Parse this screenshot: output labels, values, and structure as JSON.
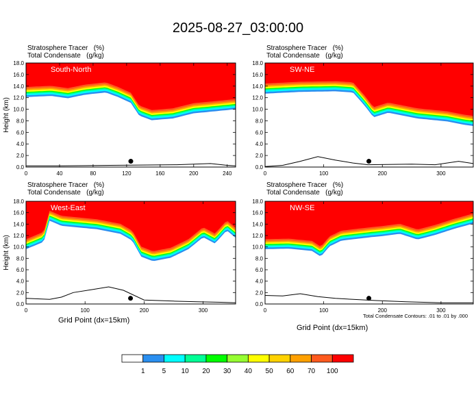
{
  "figure": {
    "title": "2025-08-27_03:00:00",
    "x_axis_label": "Grid Point (dx=15km)",
    "contour_note": "Total Condensate Contours: .01 to .01 by .000"
  },
  "colors": {
    "fill_levels": [
      "#ffffff",
      "#2a8ff0",
      "#00ffff",
      "#00ff96",
      "#00ff00",
      "#96ff32",
      "#ffff00",
      "#ffd200",
      "#ffa000",
      "#ff5a1e",
      "#ff0000"
    ],
    "terrain": "#000000",
    "contour": "#000000"
  },
  "chart_data": [
    {
      "type": "heatmap",
      "panel_label": "South-North",
      "title_lines": [
        "Stratosphere Tracer   (%)",
        "Total Condensate   (g/kg)"
      ],
      "ylabel": "Height (km)",
      "xlim": [
        0,
        250
      ],
      "ylim": [
        0,
        18
      ],
      "xticks": [
        0,
        40,
        80,
        120,
        160,
        200,
        240
      ],
      "yticks": [
        0.0,
        2.0,
        4.0,
        6.0,
        8.0,
        10.0,
        12.0,
        14.0,
        16.0,
        18.0
      ],
      "tropopause_km": [
        [
          0,
          13.0
        ],
        [
          30,
          13.2
        ],
        [
          50,
          12.8
        ],
        [
          70,
          13.4
        ],
        [
          95,
          13.8
        ],
        [
          110,
          13.0
        ],
        [
          125,
          12.0
        ],
        [
          135,
          9.8
        ],
        [
          150,
          9.0
        ],
        [
          175,
          9.3
        ],
        [
          200,
          10.2
        ],
        [
          215,
          10.4
        ],
        [
          250,
          10.9
        ]
      ],
      "terrain_km": [
        [
          0,
          0.2
        ],
        [
          40,
          0.2
        ],
        [
          100,
          0.3
        ],
        [
          180,
          0.4
        ],
        [
          220,
          0.6
        ],
        [
          240,
          0.3
        ],
        [
          250,
          0.2
        ]
      ],
      "center_marker_x": 125
    },
    {
      "type": "heatmap",
      "panel_label": "SW-NE",
      "title_lines": [
        "Stratosphere Tracer   (%)",
        "Total Condensate   (g/kg)"
      ],
      "ylabel": "",
      "xlim": [
        0,
        355
      ],
      "ylim": [
        0,
        18
      ],
      "xticks": [
        0,
        100,
        200,
        300
      ],
      "yticks": [
        0.0,
        2.0,
        4.0,
        6.0,
        8.0,
        10.0,
        12.0,
        14.0,
        16.0,
        18.0
      ],
      "tropopause_km": [
        [
          0,
          13.6
        ],
        [
          60,
          13.9
        ],
        [
          120,
          14.0
        ],
        [
          150,
          13.8
        ],
        [
          170,
          11.5
        ],
        [
          185,
          9.5
        ],
        [
          210,
          10.3
        ],
        [
          260,
          9.3
        ],
        [
          310,
          8.8
        ],
        [
          340,
          8.2
        ],
        [
          355,
          8.0
        ]
      ],
      "terrain_km": [
        [
          0,
          0.1
        ],
        [
          30,
          0.3
        ],
        [
          60,
          1.0
        ],
        [
          90,
          1.8
        ],
        [
          120,
          1.2
        ],
        [
          150,
          0.7
        ],
        [
          175,
          0.4
        ],
        [
          250,
          0.5
        ],
        [
          290,
          0.4
        ],
        [
          330,
          1.0
        ],
        [
          355,
          0.6
        ]
      ],
      "center_marker_x": 177
    },
    {
      "type": "heatmap",
      "panel_label": "West-East",
      "title_lines": [
        "Stratosphere Tracer   (%)",
        "Total Condensate   (g/kg)"
      ],
      "ylabel": "Height (km)",
      "xlim": [
        0,
        355
      ],
      "ylim": [
        0,
        18
      ],
      "xticks": [
        0,
        100,
        200,
        300
      ],
      "yticks": [
        0.0,
        2.0,
        4.0,
        6.0,
        8.0,
        10.0,
        12.0,
        14.0,
        16.0,
        18.0
      ],
      "tropopause_km": [
        [
          0,
          10.5
        ],
        [
          30,
          11.8
        ],
        [
          40,
          15.5
        ],
        [
          60,
          14.6
        ],
        [
          120,
          14.0
        ],
        [
          160,
          13.2
        ],
        [
          180,
          12.0
        ],
        [
          195,
          9.2
        ],
        [
          215,
          8.4
        ],
        [
          245,
          9.0
        ],
        [
          275,
          10.5
        ],
        [
          300,
          12.6
        ],
        [
          320,
          11.5
        ],
        [
          340,
          13.8
        ],
        [
          355,
          12.5
        ]
      ],
      "terrain_km": [
        [
          0,
          1.0
        ],
        [
          40,
          0.8
        ],
        [
          60,
          1.2
        ],
        [
          80,
          2.0
        ],
        [
          110,
          2.5
        ],
        [
          140,
          3.0
        ],
        [
          165,
          2.4
        ],
        [
          200,
          0.7
        ],
        [
          250,
          0.5
        ],
        [
          290,
          0.4
        ],
        [
          330,
          0.3
        ],
        [
          355,
          0.2
        ]
      ],
      "center_marker_x": 177
    },
    {
      "type": "heatmap",
      "panel_label": "NW-SE",
      "title_lines": [
        "Stratosphere Tracer   (%)",
        "Total Condensate   (g/kg)"
      ],
      "ylabel": "",
      "xlim": [
        0,
        355
      ],
      "ylim": [
        0,
        18
      ],
      "xticks": [
        0,
        100,
        200,
        300
      ],
      "yticks": [
        0.0,
        2.0,
        4.0,
        6.0,
        8.0,
        10.0,
        12.0,
        14.0,
        16.0,
        18.0
      ],
      "tropopause_km": [
        [
          0,
          10.5
        ],
        [
          40,
          10.6
        ],
        [
          80,
          10.2
        ],
        [
          95,
          9.2
        ],
        [
          110,
          11.0
        ],
        [
          130,
          12.0
        ],
        [
          180,
          12.6
        ],
        [
          200,
          12.8
        ],
        [
          230,
          13.2
        ],
        [
          260,
          12.2
        ],
        [
          290,
          13.0
        ],
        [
          320,
          14.0
        ],
        [
          355,
          15.0
        ]
      ],
      "terrain_km": [
        [
          0,
          1.5
        ],
        [
          30,
          1.4
        ],
        [
          60,
          1.8
        ],
        [
          90,
          1.3
        ],
        [
          120,
          1.0
        ],
        [
          150,
          0.8
        ],
        [
          190,
          0.6
        ],
        [
          240,
          0.4
        ],
        [
          300,
          0.2
        ],
        [
          355,
          0.2
        ]
      ],
      "center_marker_x": 177
    }
  ],
  "colorbar": {
    "labels": [
      "1",
      "5",
      "10",
      "20",
      "30",
      "40",
      "50",
      "60",
      "70",
      "100"
    ]
  }
}
